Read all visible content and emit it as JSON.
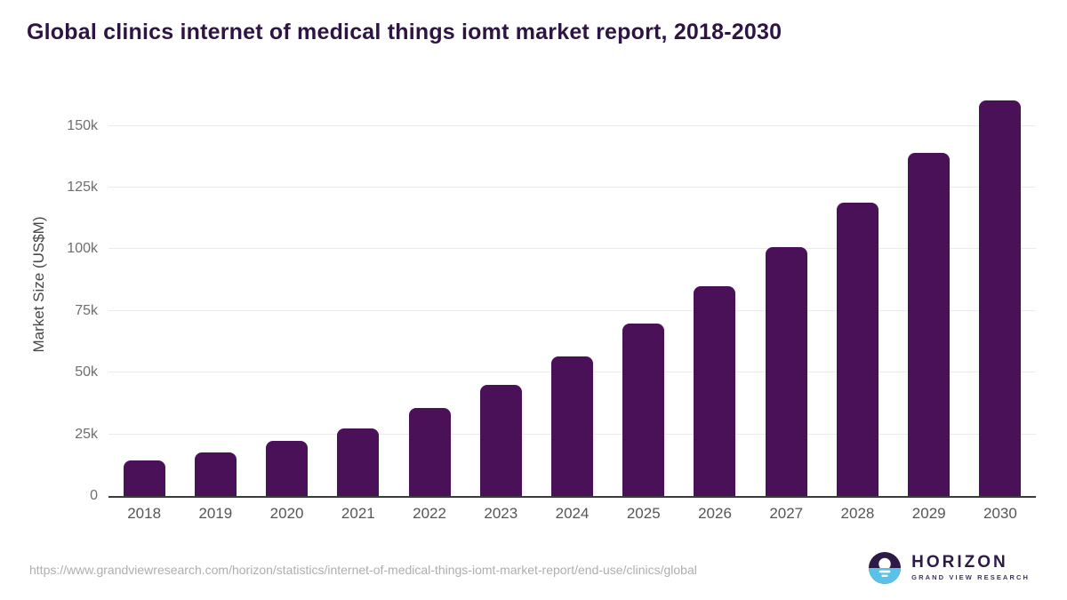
{
  "title": "Global clinics internet of medical things iomt market report, 2018-2030",
  "chart_data": {
    "type": "bar",
    "title": "Global clinics internet of medical things iomt market report, 2018-2030",
    "categories": [
      "2018",
      "2019",
      "2020",
      "2021",
      "2022",
      "2023",
      "2024",
      "2025",
      "2026",
      "2027",
      "2028",
      "2029",
      "2030"
    ],
    "values": [
      14500,
      17500,
      22500,
      27500,
      35500,
      45000,
      56500,
      70000,
      85000,
      101000,
      119000,
      139000,
      160500
    ],
    "xlabel": "",
    "ylabel": "Market Size (US$M)",
    "ylim": [
      0,
      165000
    ],
    "yticks": [
      {
        "value": 0,
        "label": "0"
      },
      {
        "value": 25000,
        "label": "25k"
      },
      {
        "value": 50000,
        "label": "50k"
      },
      {
        "value": 75000,
        "label": "75k"
      },
      {
        "value": 100000,
        "label": "100k"
      },
      {
        "value": 125000,
        "label": "125k"
      },
      {
        "value": 150000,
        "label": "150k"
      }
    ],
    "grid": "horizontal",
    "legend": "none",
    "bar_color": "#4A1158"
  },
  "colors": {
    "title_text": "#2E1443",
    "bar_fill": "#4A1158",
    "gridline": "#ebebeb",
    "axis_line": "#3a3a3a",
    "tick_text": "#6e6e6e",
    "url_text": "#aeaeae",
    "logo_purple": "#2E1A47",
    "logo_blue": "#5BC2E7"
  },
  "footer": {
    "source_url": "https://www.grandviewresearch.com/horizon/statistics/internet-of-medical-things-iomt-market-report/end-use/clinics/global",
    "logo": {
      "name": "HORIZON",
      "subtitle": "GRAND VIEW RESEARCH"
    }
  }
}
